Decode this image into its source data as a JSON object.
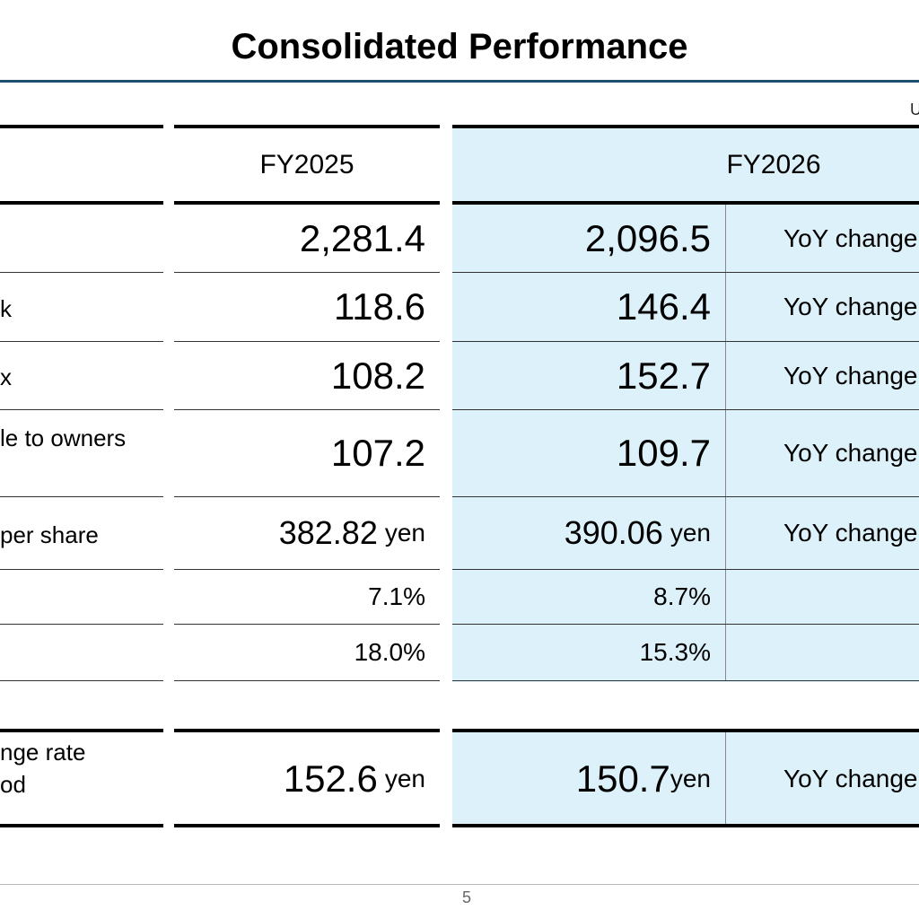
{
  "slide": {
    "title": "Consolidated Performance",
    "unit_note": "U",
    "page_number": "5"
  },
  "table": {
    "col_fy2025": "FY2025",
    "col_fy2026": "FY2026",
    "rows": [
      {
        "label_lines": [
          ""
        ],
        "fy2025": "2,281.4",
        "fy2026": "2,096.5",
        "yoy": "YoY change"
      },
      {
        "label_lines": [
          "k"
        ],
        "fy2025": "118.6",
        "fy2026": "146.4",
        "yoy": "YoY change"
      },
      {
        "label_lines": [
          "x"
        ],
        "fy2025": "108.2",
        "fy2026": "152.7",
        "yoy": "YoY change"
      },
      {
        "label_lines": [
          "le to owners",
          ""
        ],
        "fy2025": "107.2",
        "fy2026": "109.7",
        "yoy": "YoY change"
      },
      {
        "label_lines": [
          "per share"
        ],
        "fy2025": "382.82",
        "fy2025_unit": "yen",
        "fy2026": "390.06",
        "fy2026_unit": "yen",
        "yoy": "YoY change"
      },
      {
        "label_lines": [
          ""
        ],
        "fy2025": "7.1%",
        "fy2026": "8.7%",
        "yoy": ""
      },
      {
        "label_lines": [
          ""
        ],
        "fy2025": "18.0%",
        "fy2026": "15.3%",
        "yoy": ""
      }
    ],
    "exchange": {
      "label_lines": [
        "nge rate",
        "od"
      ],
      "fy2025": "152.6",
      "fy2025_unit": "yen",
      "fy2026": "150.7",
      "fy2026_unit": "yen",
      "yoy": "YoY change"
    }
  }
}
